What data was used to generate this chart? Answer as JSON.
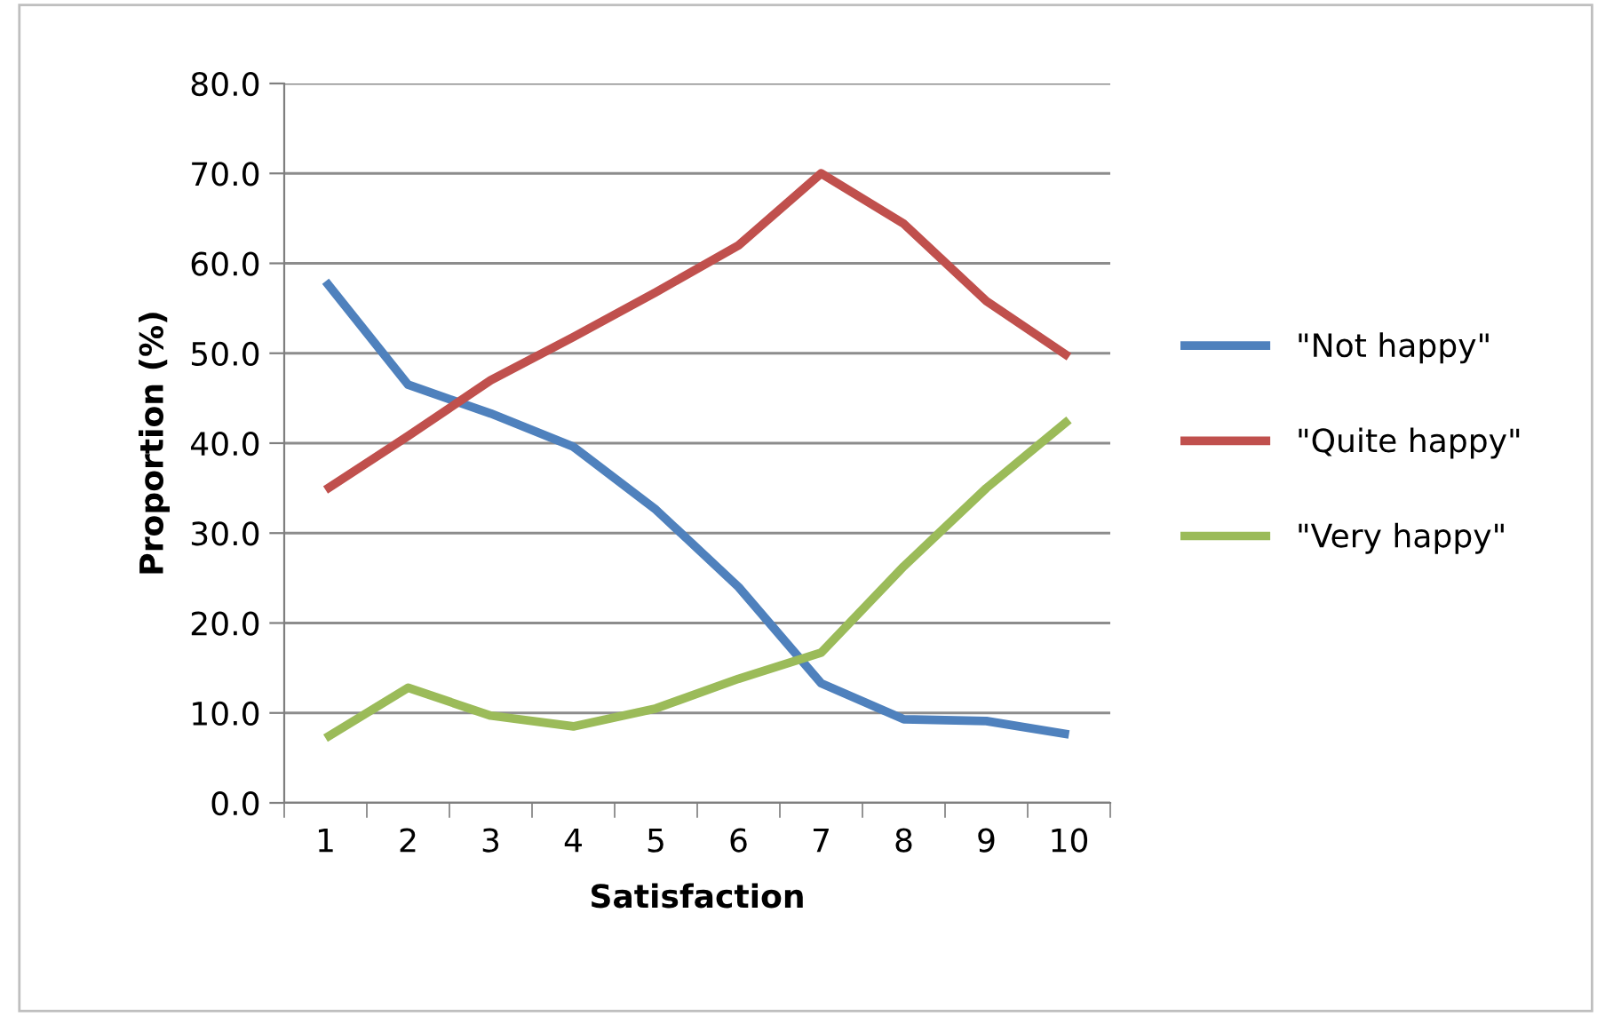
{
  "chart_data": {
    "type": "line",
    "xlabel": "Satisfaction",
    "ylabel": "Proportion (%)",
    "categories": [
      "1",
      "2",
      "3",
      "4",
      "5",
      "6",
      "7",
      "8",
      "9",
      "10"
    ],
    "series": [
      {
        "name": "\"Not happy\"",
        "color": "#4f81bd",
        "values": [
          58.0,
          46.5,
          43.3,
          39.6,
          32.6,
          24.0,
          13.3,
          9.3,
          9.1,
          7.6
        ]
      },
      {
        "name": "\"Quite happy\"",
        "color": "#c0504d",
        "values": [
          34.8,
          40.8,
          47.0,
          51.8,
          56.8,
          62.0,
          70.0,
          64.4,
          55.8,
          49.6
        ]
      },
      {
        "name": "\"Very happy\"",
        "color": "#9bbb59",
        "values": [
          7.2,
          12.8,
          9.7,
          8.5,
          10.5,
          13.8,
          16.7,
          26.3,
          35.0,
          42.6
        ]
      }
    ],
    "ylim": [
      0,
      80
    ],
    "yticks": [
      {
        "value": 0,
        "label": "0.0"
      },
      {
        "value": 10,
        "label": "10.0"
      },
      {
        "value": 20,
        "label": "20.0"
      },
      {
        "value": 30,
        "label": "30.0"
      },
      {
        "value": 40,
        "label": "40.0"
      },
      {
        "value": 50,
        "label": "50.0"
      },
      {
        "value": 60,
        "label": "60.0"
      },
      {
        "value": 70,
        "label": "70.0"
      },
      {
        "value": 80,
        "label": "80.0"
      }
    ],
    "grid": "y",
    "legend": "right",
    "marker": "none",
    "line_style": "solid"
  }
}
